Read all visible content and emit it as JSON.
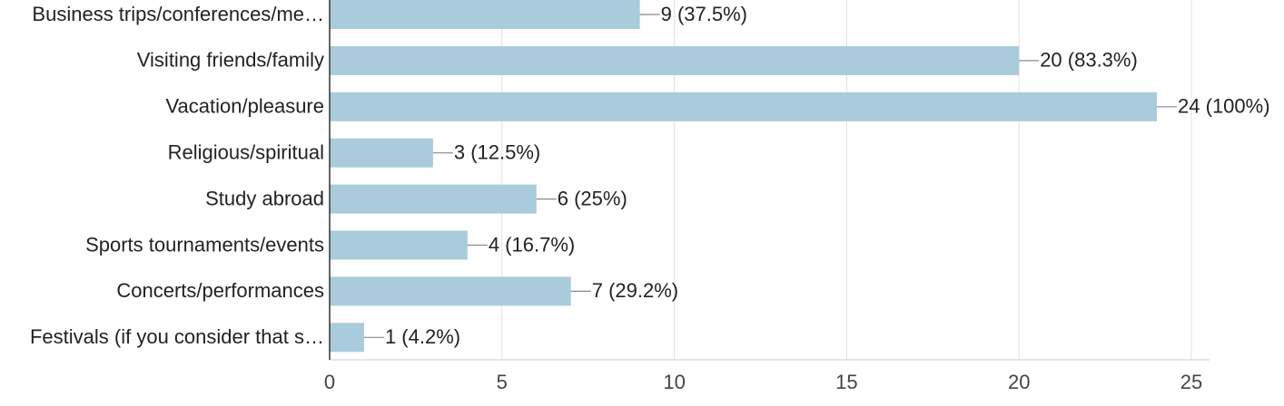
{
  "chart_data": {
    "type": "hbar",
    "categories": [
      "Business trips/conferences/me…",
      "Visiting friends/family",
      "Vacation/pleasure",
      "Religious/spiritual",
      "Study abroad",
      "Sports tournaments/events",
      "Concerts/performances",
      "Festivals (if you consider that s…"
    ],
    "values": [
      9,
      20,
      24,
      3,
      6,
      4,
      7,
      1
    ],
    "value_labels": [
      "9 (37.5%)",
      "20 (83.3%)",
      "24 (100%)",
      "3 (12.5%)",
      "6 (25%)",
      "4 (16.7%)",
      "7 (29.2%)",
      "1 (4.2%)"
    ],
    "color": "#aacbdb",
    "xlim": [
      0,
      25
    ],
    "xticks": [
      0,
      5,
      10,
      15,
      20,
      25
    ],
    "grid": true
  }
}
